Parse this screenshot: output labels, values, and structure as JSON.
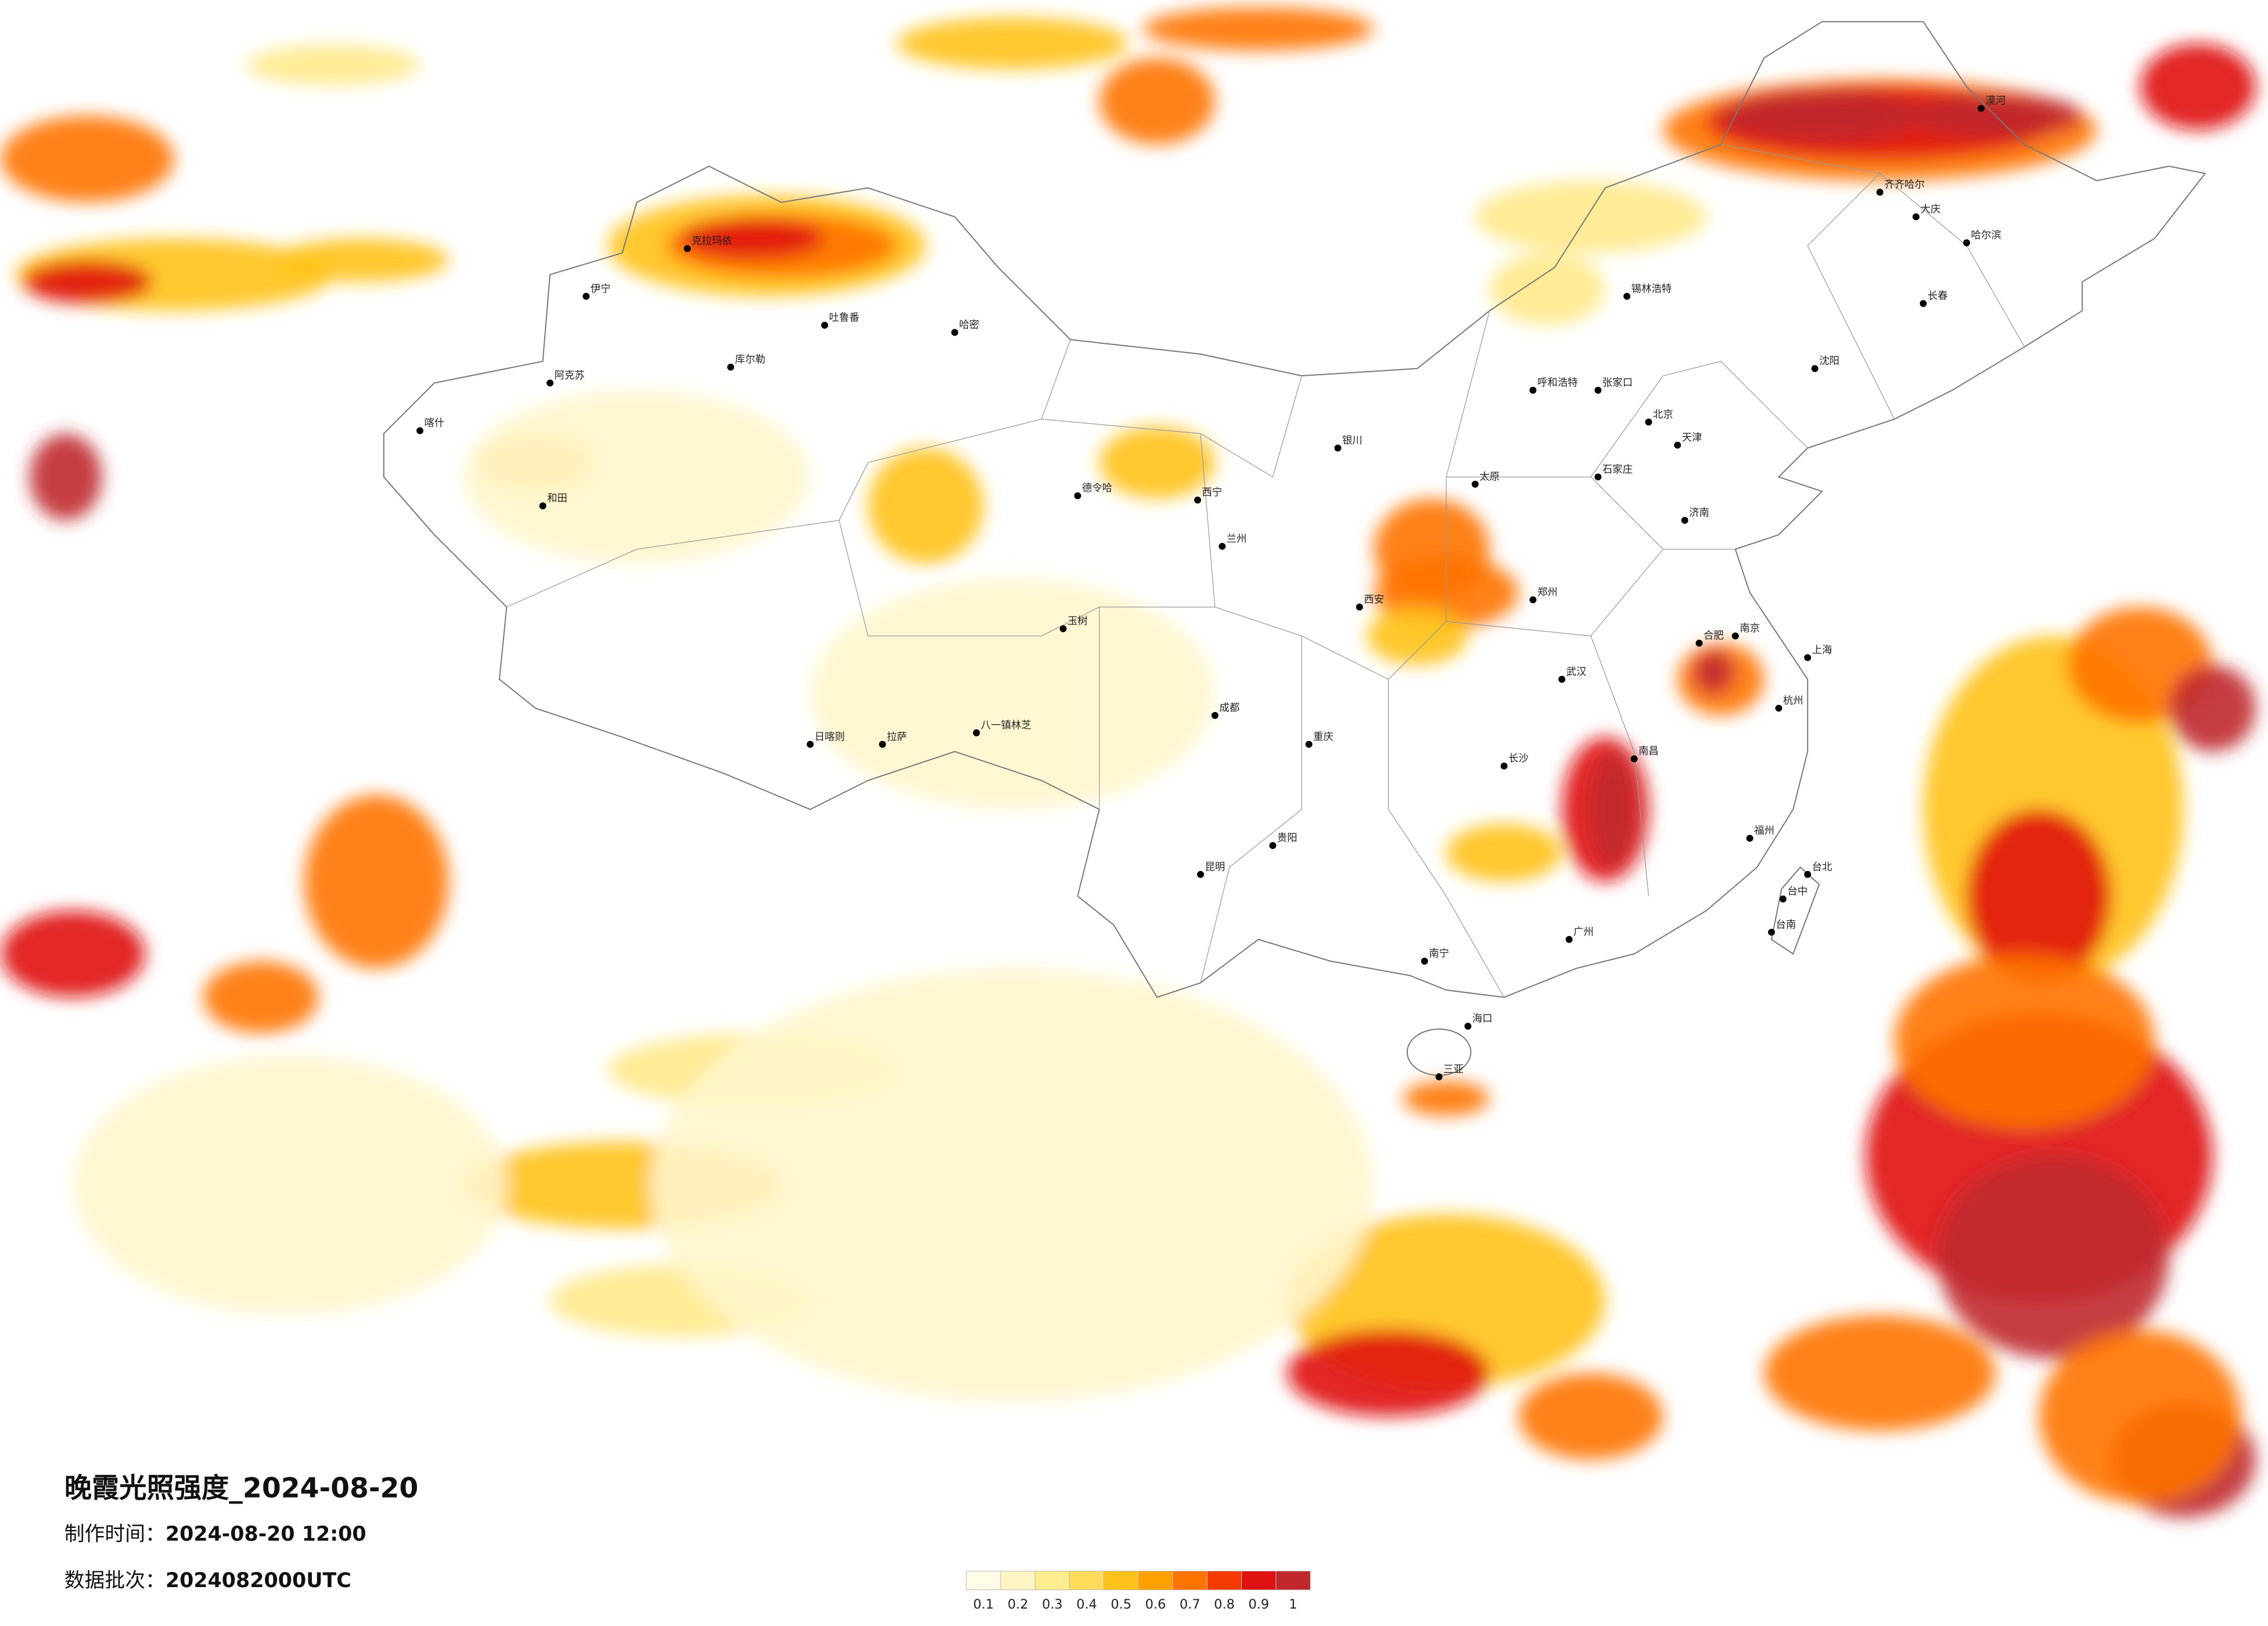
{
  "title": "晚霞光照强度_2024-08-20",
  "made_time": {
    "label": "制作时间：",
    "value": "2024-08-20 12:00"
  },
  "batch": {
    "label": "数据批次：",
    "value": "2024082000UTC"
  },
  "legend": {
    "ticks": [
      0.1,
      0.2,
      0.3,
      0.4,
      0.5,
      0.6,
      0.7,
      0.8,
      0.9,
      1
    ],
    "colors": [
      "#fffbe6",
      "#fff5c2",
      "#ffec8f",
      "#ffdb5c",
      "#ffc21a",
      "#ffa000",
      "#ff7300",
      "#f53a00",
      "#e0120f",
      "#c0282d"
    ]
  },
  "cities": [
    "伊宁",
    "阿克苏",
    "喀什",
    "和田",
    "库尔勒",
    "吐鲁番",
    "哈密",
    "克拉玛依",
    "德令哈",
    "西宁",
    "兰州",
    "银川",
    "日喀则",
    "拉萨",
    "八一镇林芝",
    "玉树",
    "呼和浩特",
    "锡林浩特",
    "张家口",
    "北京",
    "天津",
    "石家庄",
    "太原",
    "济南",
    "郑州",
    "西安",
    "武汉",
    "成都",
    "重庆",
    "贵阳",
    "昆明",
    "长沙",
    "南昌",
    "合肥",
    "南京",
    "上海",
    "杭州",
    "福州",
    "广州",
    "南宁",
    "海口",
    "三亚",
    "台北",
    "台中",
    "台南",
    "沈阳",
    "长春",
    "哈尔滨",
    "齐齐哈尔",
    "大庆",
    "漠河"
  ]
}
